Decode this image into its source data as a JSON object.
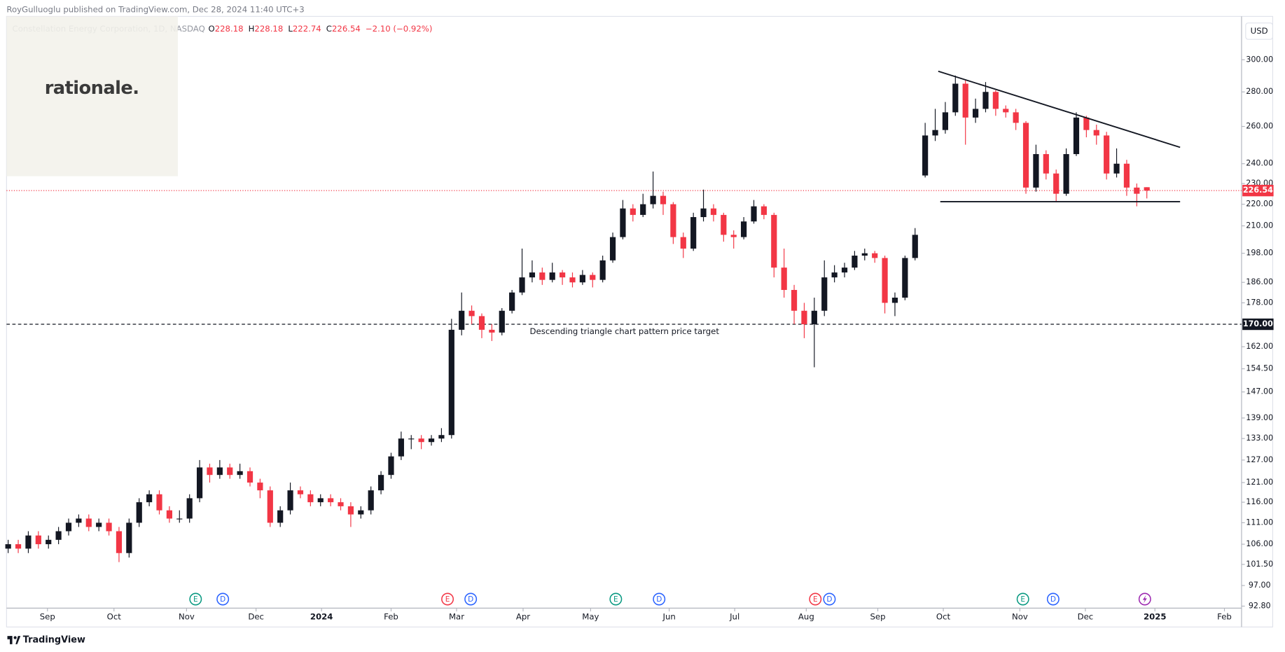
{
  "header": {
    "publisher": "RoyGulluoglu published on TradingView.com, Dec 28, 2024 11:40 UTC+3",
    "symbol": "Constellation Energy Corporation, 1D, NASDAQ",
    "ohlc": [
      {
        "label": "O",
        "value": 228.18
      },
      {
        "label": "H",
        "value": 228.18
      },
      {
        "label": "L",
        "value": 222.74
      },
      {
        "label": "C",
        "value": 226.54
      }
    ],
    "change": "−2.10 (−0.92%)",
    "currency": "USD",
    "logo": "rationale.",
    "footer": "TradingView"
  },
  "chart_data": {
    "type": "candlestick",
    "log_scale": true,
    "up_color": "#131722",
    "down_color": "#f23645",
    "ylim": [
      92.4,
      329.3
    ],
    "yticks": [
      {
        "value": 92.8,
        "label": "92.80"
      },
      {
        "value": 97,
        "label": "97.00"
      },
      {
        "value": 101.5,
        "label": "101.50"
      },
      {
        "value": 106,
        "label": "106.00"
      },
      {
        "value": 111,
        "label": "111.00"
      },
      {
        "value": 116,
        "label": "116.00"
      },
      {
        "value": 121,
        "label": "121.00"
      },
      {
        "value": 127,
        "label": "127.00"
      },
      {
        "value": 133,
        "label": "133.00"
      },
      {
        "value": 139,
        "label": "139.00"
      },
      {
        "value": 147,
        "label": "147.00"
      },
      {
        "value": 154.5,
        "label": "154.50"
      },
      {
        "value": 162,
        "label": "162.00"
      },
      {
        "value": 178,
        "label": "178.00"
      },
      {
        "value": 186,
        "label": "186.00"
      },
      {
        "value": 198,
        "label": "198.00"
      },
      {
        "value": 210,
        "label": "210.00"
      },
      {
        "value": 220,
        "label": "220.00"
      },
      {
        "value": 230,
        "label": "230.00"
      },
      {
        "value": 240,
        "label": "240.00"
      },
      {
        "value": 260,
        "label": "260.00"
      },
      {
        "value": 280,
        "label": "280.00"
      },
      {
        "value": 300,
        "label": "300.00"
      }
    ],
    "xlim": [
      -0.16,
      122.4
    ],
    "xticks": [
      {
        "value": 3.9,
        "label": "Sep"
      },
      {
        "value": 10.5,
        "label": "Oct"
      },
      {
        "value": 17.7,
        "label": "Nov"
      },
      {
        "value": 24.6,
        "label": "Dec"
      },
      {
        "value": 31.1,
        "label": "2024"
      },
      {
        "value": 38,
        "label": "Feb"
      },
      {
        "value": 44.5,
        "label": "Mar"
      },
      {
        "value": 51.1,
        "label": "Apr"
      },
      {
        "value": 57.8,
        "label": "May"
      },
      {
        "value": 65.6,
        "label": "Jun"
      },
      {
        "value": 72.1,
        "label": "Jul"
      },
      {
        "value": 79.2,
        "label": "Aug"
      },
      {
        "value": 86.3,
        "label": "Sep"
      },
      {
        "value": 92.8,
        "label": "Oct"
      },
      {
        "value": 100.4,
        "label": "Nov"
      },
      {
        "value": 106.9,
        "label": "Dec"
      },
      {
        "value": 113.8,
        "label": "2025"
      },
      {
        "value": 120.7,
        "label": "Feb"
      }
    ],
    "ohlc": [
      [
        105,
        107,
        104,
        106
      ],
      [
        106,
        107,
        104,
        105
      ],
      [
        105,
        109,
        104,
        108
      ],
      [
        108,
        109,
        105,
        106
      ],
      [
        106,
        108,
        105,
        107
      ],
      [
        107,
        110,
        106,
        109
      ],
      [
        109,
        112,
        108,
        111
      ],
      [
        111,
        113,
        110,
        112
      ],
      [
        112,
        113,
        109,
        110
      ],
      [
        110,
        112,
        109,
        111
      ],
      [
        111,
        112,
        108,
        109
      ],
      [
        109,
        110,
        102,
        104
      ],
      [
        104,
        112,
        103,
        111
      ],
      [
        111,
        117,
        110,
        116
      ],
      [
        116,
        119,
        115,
        118
      ],
      [
        118,
        119,
        113,
        114
      ],
      [
        114,
        115,
        111,
        112
      ],
      [
        112,
        114,
        111,
        112
      ],
      [
        112,
        118,
        111,
        117
      ],
      [
        117,
        127,
        116,
        125
      ],
      [
        125,
        126,
        121,
        123
      ],
      [
        123,
        127,
        122,
        125
      ],
      [
        125,
        126,
        122,
        123
      ],
      [
        123,
        126,
        122,
        124
      ],
      [
        124,
        125,
        120,
        121
      ],
      [
        121,
        122,
        117,
        119
      ],
      [
        119,
        120,
        110,
        111
      ],
      [
        111,
        115,
        110,
        114
      ],
      [
        114,
        121,
        113,
        119
      ],
      [
        119,
        120,
        117,
        118
      ],
      [
        118,
        119,
        115,
        116
      ],
      [
        116,
        118,
        115,
        117
      ],
      [
        117,
        118,
        115,
        116
      ],
      [
        116,
        117,
        114,
        115
      ],
      [
        115,
        116,
        110,
        113
      ],
      [
        113,
        115,
        112,
        114
      ],
      [
        114,
        120,
        113,
        119
      ],
      [
        119,
        124,
        118,
        123
      ],
      [
        123,
        129,
        122,
        128
      ],
      [
        128,
        135,
        127,
        133
      ],
      [
        133,
        134,
        130,
        133
      ],
      [
        133,
        134,
        130,
        132
      ],
      [
        132,
        134,
        131,
        133
      ],
      [
        133,
        136,
        132,
        134
      ],
      [
        134,
        172,
        133,
        168
      ],
      [
        168,
        182,
        166,
        175
      ],
      [
        175,
        177,
        170,
        173
      ],
      [
        173,
        174,
        165,
        168
      ],
      [
        168,
        170,
        164,
        167
      ],
      [
        167,
        176,
        166,
        175
      ],
      [
        175,
        183,
        174,
        182
      ],
      [
        182,
        200,
        181,
        188
      ],
      [
        188,
        195,
        186,
        190
      ],
      [
        190,
        192,
        185,
        187
      ],
      [
        187,
        194,
        186,
        190
      ],
      [
        190,
        191,
        185,
        188
      ],
      [
        188,
        190,
        184,
        186
      ],
      [
        186,
        191,
        185,
        189
      ],
      [
        189,
        190,
        184,
        187
      ],
      [
        187,
        197,
        186,
        195
      ],
      [
        195,
        207,
        194,
        205
      ],
      [
        205,
        222,
        204,
        218
      ],
      [
        218,
        220,
        212,
        215
      ],
      [
        215,
        225,
        214,
        220
      ],
      [
        220,
        236,
        218,
        224
      ],
      [
        224,
        226,
        215,
        220
      ],
      [
        220,
        221,
        202,
        205
      ],
      [
        205,
        207,
        196,
        200
      ],
      [
        200,
        216,
        199,
        214
      ],
      [
        214,
        227,
        212,
        218
      ],
      [
        218,
        220,
        212,
        215
      ],
      [
        215,
        216,
        203,
        206
      ],
      [
        206,
        208,
        200,
        205
      ],
      [
        205,
        214,
        204,
        212
      ],
      [
        212,
        222,
        211,
        219
      ],
      [
        219,
        220,
        213,
        215
      ],
      [
        215,
        216,
        188,
        192
      ],
      [
        192,
        200,
        180,
        183
      ],
      [
        183,
        185,
        170,
        175
      ],
      [
        175,
        178,
        165,
        170
      ],
      [
        170,
        180,
        155,
        175
      ],
      [
        175,
        195,
        173,
        188
      ],
      [
        188,
        193,
        186,
        190
      ],
      [
        190,
        194,
        188,
        192
      ],
      [
        192,
        199,
        191,
        197
      ],
      [
        197,
        200,
        195,
        198
      ],
      [
        198,
        199,
        194,
        196
      ],
      [
        196,
        197,
        174,
        178
      ],
      [
        178,
        182,
        173,
        180
      ],
      [
        180,
        197,
        179,
        196
      ],
      [
        196,
        209,
        195,
        206
      ],
      [
        234,
        262,
        233,
        255
      ],
      [
        255,
        270,
        252,
        258
      ],
      [
        258,
        274,
        256,
        268
      ],
      [
        268,
        290,
        266,
        285
      ],
      [
        285,
        287,
        250,
        265
      ],
      [
        265,
        276,
        262,
        270
      ],
      [
        270,
        286,
        268,
        280
      ],
      [
        280,
        281,
        266,
        270
      ],
      [
        270,
        272,
        265,
        268
      ],
      [
        268,
        270,
        258,
        262
      ],
      [
        262,
        263,
        225,
        228
      ],
      [
        228,
        250,
        226,
        245
      ],
      [
        245,
        247,
        232,
        235
      ],
      [
        235,
        237,
        221,
        225
      ],
      [
        225,
        248,
        224,
        245
      ],
      [
        245,
        268,
        244,
        265
      ],
      [
        265,
        266,
        254,
        258
      ],
      [
        258,
        261,
        250,
        255
      ],
      [
        255,
        257,
        232,
        235
      ],
      [
        235,
        248,
        233,
        240
      ],
      [
        240,
        242,
        224,
        228
      ],
      [
        228,
        230,
        219,
        225
      ],
      [
        228.18,
        228.18,
        222.74,
        226.54
      ]
    ],
    "last_price": 226.54,
    "target": {
      "value": 170,
      "label": "170.00",
      "text": "Descending triangle chart pattern price target"
    },
    "trendlines": [
      {
        "x": [
          92.3,
          116.3
        ],
        "y": [
          292.7,
          248.6
        ]
      },
      {
        "x": [
          92.5,
          116.3
        ],
        "y": [
          221.2,
          221.2
        ]
      }
    ],
    "events": [
      {
        "label": "E",
        "at": 18.6,
        "color": "#089981"
      },
      {
        "label": "D",
        "at": 21.3,
        "color": "#2962ff"
      },
      {
        "label": "E",
        "at": 43.6,
        "color": "#f23645"
      },
      {
        "label": "D",
        "at": 45.9,
        "color": "#2962ff"
      },
      {
        "label": "E",
        "at": 60.3,
        "color": "#089981"
      },
      {
        "label": "D",
        "at": 64.6,
        "color": "#2962ff"
      },
      {
        "label": "E",
        "at": 80.1,
        "color": "#f23645"
      },
      {
        "label": "D",
        "at": 81.5,
        "color": "#2962ff"
      },
      {
        "label": "E",
        "at": 100.7,
        "color": "#089981"
      },
      {
        "label": "D",
        "at": 103.7,
        "color": "#2962ff"
      },
      {
        "at": 112.8,
        "color": "#9c27b0"
      }
    ]
  }
}
